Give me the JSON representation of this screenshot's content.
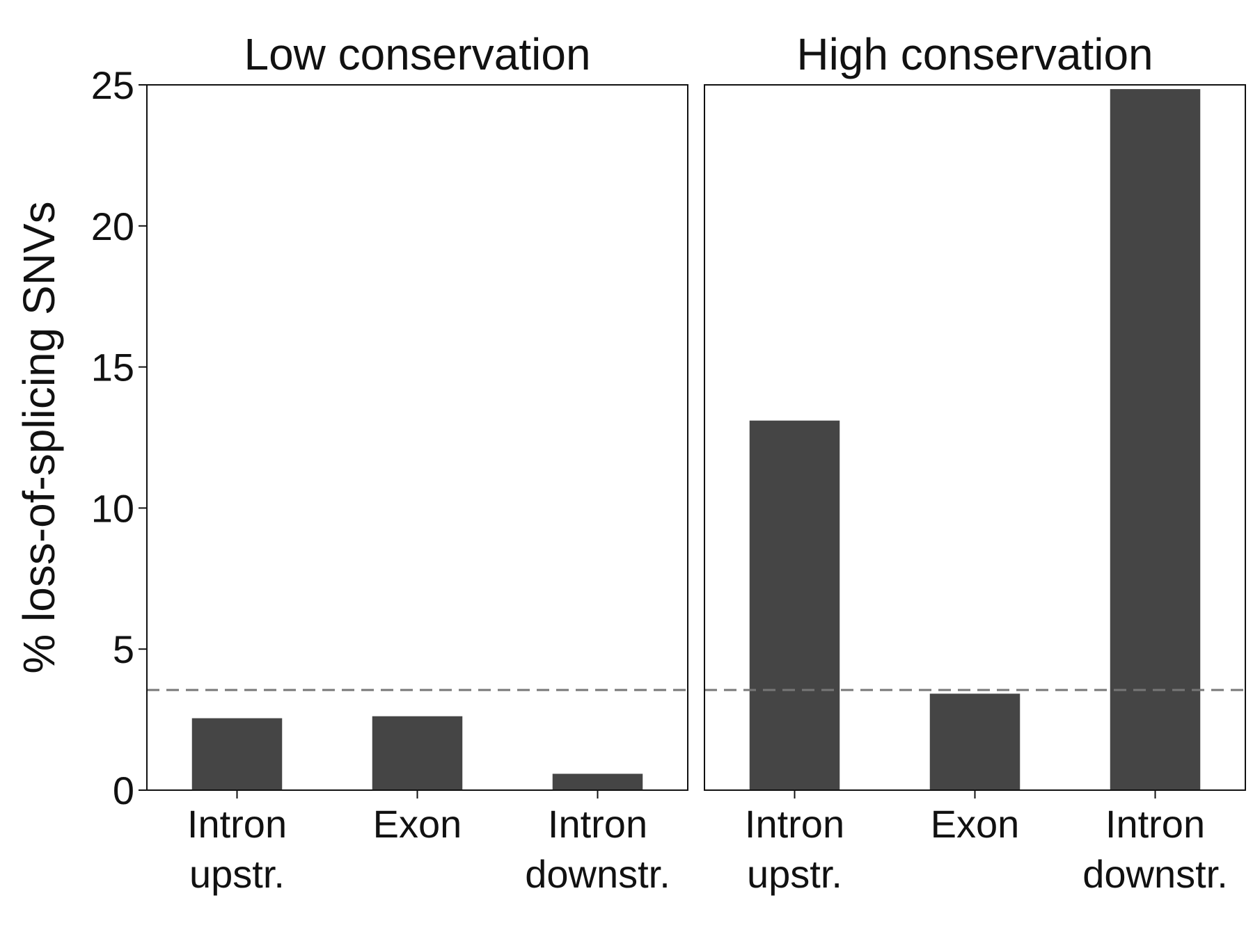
{
  "chart_data": {
    "type": "bar",
    "ylabel": "% loss-of-splicing SNVs",
    "ylim": [
      0,
      25
    ],
    "yticks": [
      0,
      5,
      10,
      15,
      20,
      25
    ],
    "reference_line": {
      "value": 3.55,
      "style": "dashed",
      "color": "#777777"
    },
    "bar_color": "#454545",
    "categories": [
      [
        "Intron",
        "upstr."
      ],
      [
        "Exon"
      ],
      [
        "Intron",
        "downstr."
      ]
    ],
    "panels": [
      {
        "title": "Low conservation",
        "values": [
          2.55,
          2.62,
          0.58
        ]
      },
      {
        "title": "High conservation",
        "values": [
          13.1,
          3.42,
          24.85
        ]
      }
    ],
    "grid": false,
    "legend": "none"
  }
}
